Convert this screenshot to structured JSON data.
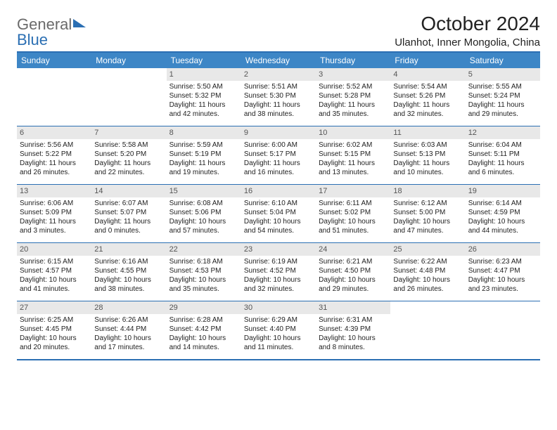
{
  "brand": {
    "part1": "General",
    "part2": "Blue"
  },
  "title": "October 2024",
  "location": "Ulanhot, Inner Mongolia, China",
  "colors": {
    "accent": "#2b6fb3",
    "header_bg": "#3d86c6",
    "daynum_bg": "#e8e8e8",
    "text": "#222222",
    "logo_gray": "#6a6a6a"
  },
  "dow": [
    "Sunday",
    "Monday",
    "Tuesday",
    "Wednesday",
    "Thursday",
    "Friday",
    "Saturday"
  ],
  "weeks": [
    [
      null,
      null,
      {
        "n": "1",
        "sr": "5:50 AM",
        "ss": "5:32 PM",
        "dl": "11 hours and 42 minutes."
      },
      {
        "n": "2",
        "sr": "5:51 AM",
        "ss": "5:30 PM",
        "dl": "11 hours and 38 minutes."
      },
      {
        "n": "3",
        "sr": "5:52 AM",
        "ss": "5:28 PM",
        "dl": "11 hours and 35 minutes."
      },
      {
        "n": "4",
        "sr": "5:54 AM",
        "ss": "5:26 PM",
        "dl": "11 hours and 32 minutes."
      },
      {
        "n": "5",
        "sr": "5:55 AM",
        "ss": "5:24 PM",
        "dl": "11 hours and 29 minutes."
      }
    ],
    [
      {
        "n": "6",
        "sr": "5:56 AM",
        "ss": "5:22 PM",
        "dl": "11 hours and 26 minutes."
      },
      {
        "n": "7",
        "sr": "5:58 AM",
        "ss": "5:20 PM",
        "dl": "11 hours and 22 minutes."
      },
      {
        "n": "8",
        "sr": "5:59 AM",
        "ss": "5:19 PM",
        "dl": "11 hours and 19 minutes."
      },
      {
        "n": "9",
        "sr": "6:00 AM",
        "ss": "5:17 PM",
        "dl": "11 hours and 16 minutes."
      },
      {
        "n": "10",
        "sr": "6:02 AM",
        "ss": "5:15 PM",
        "dl": "11 hours and 13 minutes."
      },
      {
        "n": "11",
        "sr": "6:03 AM",
        "ss": "5:13 PM",
        "dl": "11 hours and 10 minutes."
      },
      {
        "n": "12",
        "sr": "6:04 AM",
        "ss": "5:11 PM",
        "dl": "11 hours and 6 minutes."
      }
    ],
    [
      {
        "n": "13",
        "sr": "6:06 AM",
        "ss": "5:09 PM",
        "dl": "11 hours and 3 minutes."
      },
      {
        "n": "14",
        "sr": "6:07 AM",
        "ss": "5:07 PM",
        "dl": "11 hours and 0 minutes."
      },
      {
        "n": "15",
        "sr": "6:08 AM",
        "ss": "5:06 PM",
        "dl": "10 hours and 57 minutes."
      },
      {
        "n": "16",
        "sr": "6:10 AM",
        "ss": "5:04 PM",
        "dl": "10 hours and 54 minutes."
      },
      {
        "n": "17",
        "sr": "6:11 AM",
        "ss": "5:02 PM",
        "dl": "10 hours and 51 minutes."
      },
      {
        "n": "18",
        "sr": "6:12 AM",
        "ss": "5:00 PM",
        "dl": "10 hours and 47 minutes."
      },
      {
        "n": "19",
        "sr": "6:14 AM",
        "ss": "4:59 PM",
        "dl": "10 hours and 44 minutes."
      }
    ],
    [
      {
        "n": "20",
        "sr": "6:15 AM",
        "ss": "4:57 PM",
        "dl": "10 hours and 41 minutes."
      },
      {
        "n": "21",
        "sr": "6:16 AM",
        "ss": "4:55 PM",
        "dl": "10 hours and 38 minutes."
      },
      {
        "n": "22",
        "sr": "6:18 AM",
        "ss": "4:53 PM",
        "dl": "10 hours and 35 minutes."
      },
      {
        "n": "23",
        "sr": "6:19 AM",
        "ss": "4:52 PM",
        "dl": "10 hours and 32 minutes."
      },
      {
        "n": "24",
        "sr": "6:21 AM",
        "ss": "4:50 PM",
        "dl": "10 hours and 29 minutes."
      },
      {
        "n": "25",
        "sr": "6:22 AM",
        "ss": "4:48 PM",
        "dl": "10 hours and 26 minutes."
      },
      {
        "n": "26",
        "sr": "6:23 AM",
        "ss": "4:47 PM",
        "dl": "10 hours and 23 minutes."
      }
    ],
    [
      {
        "n": "27",
        "sr": "6:25 AM",
        "ss": "4:45 PM",
        "dl": "10 hours and 20 minutes."
      },
      {
        "n": "28",
        "sr": "6:26 AM",
        "ss": "4:44 PM",
        "dl": "10 hours and 17 minutes."
      },
      {
        "n": "29",
        "sr": "6:28 AM",
        "ss": "4:42 PM",
        "dl": "10 hours and 14 minutes."
      },
      {
        "n": "30",
        "sr": "6:29 AM",
        "ss": "4:40 PM",
        "dl": "10 hours and 11 minutes."
      },
      {
        "n": "31",
        "sr": "6:31 AM",
        "ss": "4:39 PM",
        "dl": "10 hours and 8 minutes."
      },
      null,
      null
    ]
  ],
  "labels": {
    "sunrise": "Sunrise:",
    "sunset": "Sunset:",
    "daylight": "Daylight:"
  }
}
